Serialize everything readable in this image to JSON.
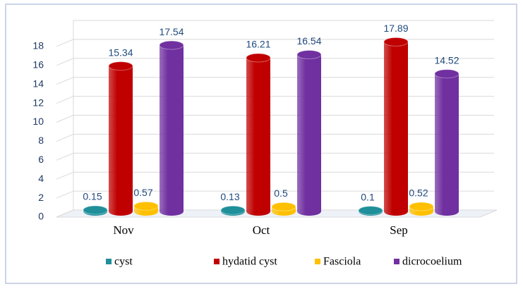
{
  "chart_data": {
    "type": "bar3d",
    "categories": [
      "Nov",
      "Oct",
      "Sep"
    ],
    "series": [
      {
        "name": "cyst",
        "color": "#1f8f9a",
        "values": [
          0.15,
          0.13,
          0.1
        ]
      },
      {
        "name": "hydatid cyst",
        "color": "#c00000",
        "values": [
          15.34,
          16.21,
          17.89
        ]
      },
      {
        "name": "Fasciola",
        "color": "#ffc000",
        "values": [
          0.57,
          0.5,
          0.52
        ]
      },
      {
        "name": "dicrocoelium",
        "color": "#7030a0",
        "values": [
          17.54,
          16.54,
          14.52
        ]
      }
    ],
    "ylim": [
      0,
      20
    ],
    "yticks": [
      0,
      2,
      4,
      6,
      8,
      10,
      12,
      14,
      16,
      18
    ],
    "grid": true
  }
}
